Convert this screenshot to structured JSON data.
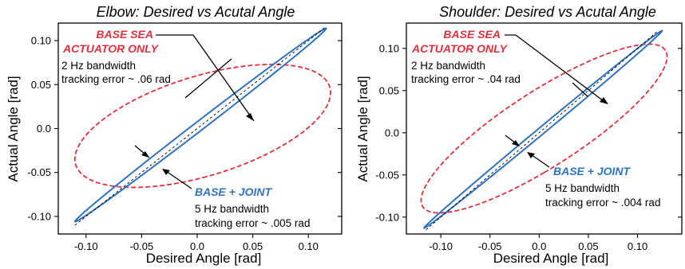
{
  "chart_data": [
    {
      "type": "scatter",
      "title": "Elbow: Desired vs Acutal Angle",
      "xlabel": "Desired Angle [rad]",
      "ylabel": "Actual Angle [rad]",
      "xlim": [
        -0.125,
        0.13
      ],
      "ylim": [
        -0.12,
        0.12
      ],
      "x_ticks": [
        "-0.10",
        "-0.05",
        "0.0",
        "0.05",
        "0.10"
      ],
      "y_ticks": [
        "-0.10",
        "-0.05",
        "0.0",
        "0.05",
        "0.10"
      ],
      "x_tick_values": [
        -0.1,
        -0.05,
        0.0,
        0.05,
        0.1
      ],
      "y_tick_values": [
        -0.1,
        -0.05,
        0.0,
        0.05,
        0.1
      ],
      "grid": false,
      "series": [
        {
          "name": "BASE SEA ACTUATOR ONLY",
          "color": "#e0303f",
          "style": "dashed",
          "loop": {
            "center": [
              0.005,
              0.003
            ],
            "amplitude_x": 0.115,
            "amplitude_y": 0.07,
            "phase_lag": 1.0
          }
        },
        {
          "name": "BASE + JOINT",
          "color": "#2f72c4",
          "style": "solid",
          "loop": {
            "center": [
              0.003,
              0.004
            ],
            "amplitude_x": 0.113,
            "amplitude_y": 0.11,
            "phase_lag": 0.06
          }
        },
        {
          "name": "reference",
          "color": "#000000",
          "style": "dashed-thin",
          "line": {
            "x": [
              -0.11,
              0.115
            ],
            "y": [
              -0.11,
              0.115
            ]
          }
        }
      ],
      "annotations": {
        "red_title_1": "BASE SEA",
        "red_title_2": "ACTUATOR ONLY",
        "red_line_1": "2 Hz bandwidth",
        "red_line_2": "tracking error ~ .06 rad",
        "blue_title": "BASE + JOINT",
        "blue_line_1": "5 Hz bandwidth",
        "blue_line_2": "tracking error ~ .005 rad"
      }
    },
    {
      "type": "scatter",
      "title": "Shoulder: Desired vs Acutal Angle",
      "xlabel": "Desired Angle [rad]",
      "ylabel": "Actual Angle [rad]",
      "xlim": [
        -0.135,
        0.145
      ],
      "ylim": [
        -0.12,
        0.13
      ],
      "x_ticks": [
        "-0.10",
        "-0.05",
        "0.0",
        "0.05",
        "0.10"
      ],
      "y_ticks": [
        "-0.10",
        "-0.05",
        "0.0",
        "0.05",
        "0.10"
      ],
      "x_tick_values": [
        -0.1,
        -0.05,
        0.0,
        0.05,
        0.1
      ],
      "y_tick_values": [
        -0.1,
        -0.05,
        0.0,
        0.05,
        0.1
      ],
      "grid": false,
      "series": [
        {
          "name": "BASE SEA ACTUATOR ONLY",
          "color": "#e0303f",
          "style": "dashed",
          "loop": {
            "center": [
              0.005,
              0.005
            ],
            "amplitude_x": 0.125,
            "amplitude_y": 0.1,
            "phase_lag": 0.55
          }
        },
        {
          "name": "BASE + JOINT",
          "color": "#2f72c4",
          "style": "solid",
          "loop": {
            "center": [
              0.004,
              0.004
            ],
            "amplitude_x": 0.121,
            "amplitude_y": 0.117,
            "phase_lag": 0.045
          }
        },
        {
          "name": "reference",
          "color": "#000000",
          "style": "dashed-thin",
          "line": {
            "x": [
              -0.115,
              0.12
            ],
            "y": [
              -0.115,
              0.12
            ]
          }
        }
      ],
      "annotations": {
        "red_title_1": "BASE SEA",
        "red_title_2": "ACTUATOR ONLY",
        "red_line_1": "2 Hz bandwidth",
        "red_line_2": "tracking error ~ .04 rad",
        "blue_title": "BASE + JOINT",
        "blue_line_1": "5 Hz bandwidth",
        "blue_line_2": "tracking error ~ .004 rad"
      }
    }
  ]
}
